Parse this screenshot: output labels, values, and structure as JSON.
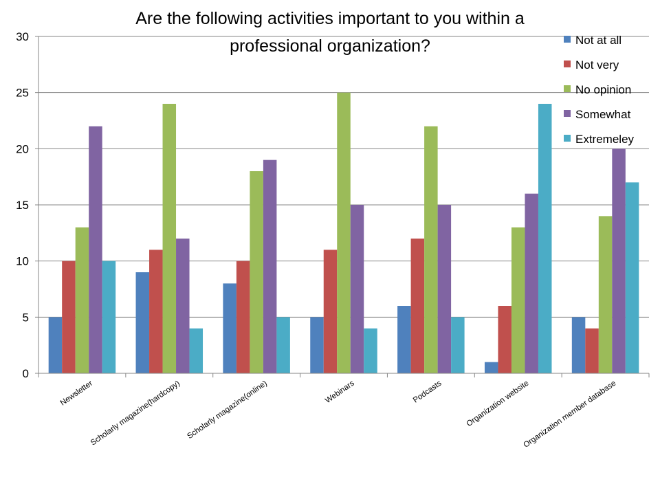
{
  "chart_data": {
    "type": "bar",
    "title": "Are the following activities important to you within a professional organization?",
    "title_lines": [
      "Are the following activities important to you within a",
      "professional organization?"
    ],
    "xlabel": "",
    "ylabel": "",
    "ylim": [
      0,
      30
    ],
    "yticks": [
      0,
      5,
      10,
      15,
      20,
      25,
      30
    ],
    "grid": true,
    "legend_position": "top-right",
    "categories": [
      "Newsletter",
      "Scholarly magazine(hardcopy)",
      "Scholarly magazine(online)",
      "Webinars",
      "Podcasts",
      "Organization website",
      "Organization member database"
    ],
    "series": [
      {
        "name": "Not at all",
        "color": "#4F81BD",
        "values": [
          5,
          9,
          8,
          5,
          6,
          1,
          5
        ]
      },
      {
        "name": "Not very",
        "color": "#C0504D",
        "values": [
          10,
          11,
          10,
          11,
          12,
          6,
          4
        ]
      },
      {
        "name": "No opinion",
        "color": "#9BBB59",
        "values": [
          13,
          24,
          18,
          25,
          22,
          13,
          14
        ]
      },
      {
        "name": "Somewhat",
        "color": "#8064A2",
        "values": [
          22,
          12,
          19,
          15,
          15,
          16,
          20
        ]
      },
      {
        "name": "Extremeley",
        "color": "#4BACC6",
        "values": [
          10,
          4,
          5,
          4,
          5,
          24,
          17
        ]
      }
    ]
  }
}
